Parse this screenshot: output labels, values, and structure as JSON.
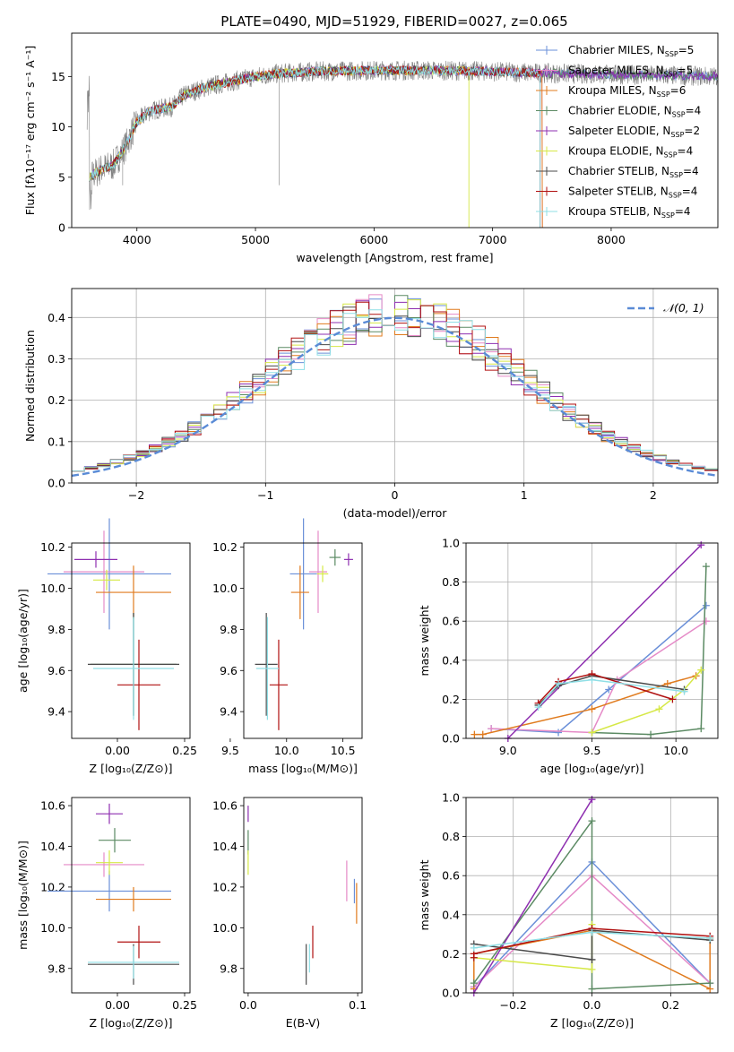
{
  "page_title": "PLATE=0490, MJD=51929, FIBERID=0027, z=0.065",
  "colors": {
    "Chabrier MILES": "#6a8fd8",
    "Salpeter MILES": "#e58ac7",
    "Kroupa MILES": "#e07b1e",
    "Chabrier ELODIE": "#5b8a63",
    "Salpeter ELODIE": "#8e2fb0",
    "Kroupa ELODIE": "#d6e847",
    "Chabrier STELIB": "#4a4a4a",
    "Salpeter STELIB": "#b01010",
    "Kroupa STELIB": "#8fdfe6",
    "data": "#808080"
  },
  "chart_data": [
    {
      "panel": "spectrum",
      "type": "line",
      "title": "PLATE=0490, MJD=51929, FIBERID=0027, z=0.065",
      "xlabel": "wavelength [Angstrom, rest frame]",
      "ylabel": "Flux [fλ10⁻¹⁷ erg cm⁻² s⁻¹ A⁻¹]",
      "xlim": [
        3450,
        8900
      ],
      "ylim": [
        0,
        19.3
      ],
      "xticks": [
        "4000",
        "5000",
        "6000",
        "7000",
        "8000"
      ],
      "yticks": [
        "0",
        "5",
        "10",
        "15"
      ],
      "legend_position": "upper right",
      "legend": [
        "Chabrier MILES, N$_{SSP}$=5",
        "Salpeter MILES, N$_{SSP}$=5",
        "Kroupa MILES, N$_{SSP}$=6",
        "Chabrier ELODIE, N$_{SSP}$=4",
        "Salpeter ELODIE, N$_{SSP}$=2",
        "Kroupa ELODIE, N$_{SSP}$=4",
        "Chabrier STELIB, N$_{SSP}$=4",
        "Salpeter STELIB, N$_{SSP}$=4",
        "Kroupa STELIB, N$_{SSP}$=4"
      ],
      "continuum": {
        "x": [
          3600,
          3700,
          3800,
          3900,
          4000,
          4100,
          4200,
          4300,
          4400,
          4600,
          4800,
          5000,
          5200,
          5500,
          6000,
          6500,
          7000,
          7500,
          8000,
          8500,
          8900
        ],
        "y": [
          5.0,
          5.8,
          6.2,
          8.0,
          10.5,
          11.5,
          11.8,
          12.0,
          13.2,
          14.0,
          14.5,
          15.0,
          15.3,
          15.5,
          15.6,
          15.6,
          15.5,
          15.3,
          15.2,
          15.1,
          15.0
        ]
      },
      "model_end": [
        8900,
        7420,
        7420,
        8900,
        8900,
        6800,
        7400,
        7400,
        7400
      ]
    },
    {
      "panel": "residual-histogram",
      "type": "bar",
      "xlabel": "(data-model)/error",
      "ylabel": "Normed distribution",
      "xlim": [
        -2.5,
        2.5
      ],
      "ylim": [
        0,
        0.47
      ],
      "xticks": [
        "−2",
        "−1",
        "0",
        "1",
        "2"
      ],
      "yticks": [
        "0.0",
        "0.1",
        "0.2",
        "0.3",
        "0.4"
      ],
      "grid": true,
      "legend": [
        "𝒩(0, 1)"
      ],
      "legend_position": "upper right",
      "gaussian": {
        "mu": 0,
        "sigma": 1,
        "color": "#5a8bd6"
      },
      "bin_width": 0.1
    },
    {
      "panel": "age-vs-Z",
      "type": "scatter",
      "xlabel": "Z [log₁₀(Z/Z⊙)]",
      "ylabel": "age  [log₁₀(age/yr)]",
      "xlim": [
        -0.17,
        0.27
      ],
      "ylim": [
        9.27,
        10.22
      ],
      "xticks": [
        "0.00",
        "0.25"
      ],
      "yticks": [
        "9.4",
        "9.6",
        "9.8",
        "10.0",
        "10.2"
      ],
      "points": [
        {
          "model": "Chabrier MILES",
          "x": -0.03,
          "xerr": 0.23,
          "y": 10.07,
          "yerr": 0.27
        },
        {
          "model": "Salpeter MILES",
          "x": -0.05,
          "xerr": 0.15,
          "y": 10.08,
          "yerr": 0.2
        },
        {
          "model": "Kroupa MILES",
          "x": 0.06,
          "xerr": 0.14,
          "y": 9.98,
          "yerr": 0.13
        },
        {
          "model": "Chabrier ELODIE",
          "x": 0.06,
          "xerr": 0.16,
          "y": 9.63,
          "yerr": 0.25
        },
        {
          "model": "Salpeter ELODIE",
          "x": -0.08,
          "xerr": 0.08,
          "y": 10.14,
          "yerr": 0.04
        },
        {
          "model": "Kroupa ELODIE",
          "x": -0.04,
          "xerr": 0.05,
          "y": 10.04,
          "yerr": 0.05
        },
        {
          "model": "Chabrier STELIB",
          "x": 0.06,
          "xerr": 0.17,
          "y": 9.63,
          "yerr": 0.25
        },
        {
          "model": "Salpeter STELIB",
          "x": 0.08,
          "xerr": 0.08,
          "y": 9.53,
          "yerr": 0.22
        },
        {
          "model": "Kroupa STELIB",
          "x": 0.06,
          "xerr": 0.15,
          "y": 9.61,
          "yerr": 0.25
        }
      ]
    },
    {
      "panel": "age-vs-mass",
      "type": "scatter",
      "xlabel": "mass [log₁₀(M/M⊙)]",
      "xlim": [
        9.62,
        10.67
      ],
      "ylim": [
        9.27,
        10.22
      ],
      "xticks": [
        "9.5",
        "10.0",
        "10.5"
      ],
      "yticks": [
        "9.4",
        "9.6",
        "9.8",
        "10.0",
        "10.2"
      ],
      "points": [
        {
          "model": "Chabrier MILES",
          "x": 10.15,
          "xerr": 0.12,
          "y": 10.07,
          "yerr": 0.27
        },
        {
          "model": "Salpeter MILES",
          "x": 10.28,
          "xerr": 0.08,
          "y": 10.08,
          "yerr": 0.2
        },
        {
          "model": "Kroupa MILES",
          "x": 10.12,
          "xerr": 0.08,
          "y": 9.98,
          "yerr": 0.13
        },
        {
          "model": "Chabrier ELODIE",
          "x": 10.43,
          "xerr": 0.05,
          "y": 10.15,
          "yerr": 0.04
        },
        {
          "model": "Salpeter ELODIE",
          "x": 10.55,
          "xerr": 0.04,
          "y": 10.14,
          "yerr": 0.03
        },
        {
          "model": "Kroupa ELODIE",
          "x": 10.32,
          "xerr": 0.05,
          "y": 10.07,
          "yerr": 0.04
        },
        {
          "model": "Chabrier STELIB",
          "x": 9.82,
          "xerr": 0.1,
          "y": 9.63,
          "yerr": 0.25
        },
        {
          "model": "Salpeter STELIB",
          "x": 9.93,
          "xerr": 0.08,
          "y": 9.53,
          "yerr": 0.22
        },
        {
          "model": "Kroupa STELIB",
          "x": 9.83,
          "xerr": 0.1,
          "y": 9.61,
          "yerr": 0.25
        }
      ]
    },
    {
      "panel": "mass-weight-vs-age",
      "type": "line",
      "xlabel": "age  [log₁₀(age/yr)]",
      "ylabel": "mass weight",
      "xlim": [
        8.75,
        10.25
      ],
      "ylim": [
        0,
        1.0
      ],
      "xticks": [
        "9.0",
        "9.5",
        "10.0"
      ],
      "yticks": [
        "0.0",
        "0.2",
        "0.4",
        "0.6",
        "0.8",
        "1.0"
      ],
      "grid": true,
      "series": [
        {
          "model": "Chabrier MILES",
          "x": [
            8.9,
            9.3,
            9.6,
            10.18
          ],
          "y": [
            0.05,
            0.03,
            0.25,
            0.68
          ]
        },
        {
          "model": "Salpeter MILES",
          "x": [
            8.9,
            9.5,
            9.65,
            10.18
          ],
          "y": [
            0.05,
            0.03,
            0.3,
            0.6
          ]
        },
        {
          "model": "Kroupa MILES",
          "x": [
            8.8,
            8.85,
            9.5,
            9.95,
            10.12
          ],
          "y": [
            0.02,
            0.02,
            0.15,
            0.28,
            0.32
          ]
        },
        {
          "model": "Chabrier ELODIE",
          "x": [
            9.5,
            9.85,
            10.15,
            10.18
          ],
          "y": [
            0.03,
            0.02,
            0.05,
            0.88
          ]
        },
        {
          "model": "Salpeter ELODIE",
          "x": [
            9.0,
            10.15
          ],
          "y": [
            0.0,
            0.99
          ]
        },
        {
          "model": "Kroupa ELODIE",
          "x": [
            9.5,
            9.9,
            10.05,
            10.15
          ],
          "y": [
            0.03,
            0.15,
            0.25,
            0.35
          ]
        },
        {
          "model": "Chabrier STELIB",
          "x": [
            9.18,
            9.3,
            9.5,
            10.05
          ],
          "y": [
            0.17,
            0.27,
            0.32,
            0.25
          ]
        },
        {
          "model": "Salpeter STELIB",
          "x": [
            9.18,
            9.3,
            9.5,
            9.98
          ],
          "y": [
            0.18,
            0.29,
            0.33,
            0.2
          ]
        },
        {
          "model": "Kroupa STELIB",
          "x": [
            9.18,
            9.3,
            9.5,
            10.05
          ],
          "y": [
            0.16,
            0.28,
            0.3,
            0.24
          ]
        }
      ]
    },
    {
      "panel": "mass-vs-Z",
      "type": "scatter",
      "xlabel": "Z [log₁₀(Z/Z⊙)]",
      "ylabel": "mass [log₁₀(M/M⊙)]",
      "xlim": [
        -0.17,
        0.27
      ],
      "ylim": [
        9.68,
        10.64
      ],
      "xticks": [
        "0.00",
        "0.25"
      ],
      "yticks": [
        "9.8",
        "10.0",
        "10.2",
        "10.4",
        "10.6"
      ],
      "points": [
        {
          "model": "Chabrier MILES",
          "x": -0.03,
          "xerr": 0.23,
          "y": 10.18,
          "yerr": 0.1
        },
        {
          "model": "Salpeter MILES",
          "x": -0.05,
          "xerr": 0.15,
          "y": 10.31,
          "yerr": 0.06
        },
        {
          "model": "Kroupa MILES",
          "x": 0.06,
          "xerr": 0.14,
          "y": 10.14,
          "yerr": 0.06
        },
        {
          "model": "Chabrier ELODIE",
          "x": -0.01,
          "xerr": 0.06,
          "y": 10.43,
          "yerr": 0.06
        },
        {
          "model": "Salpeter ELODIE",
          "x": -0.03,
          "xerr": 0.05,
          "y": 10.56,
          "yerr": 0.05
        },
        {
          "model": "Kroupa ELODIE",
          "x": -0.03,
          "xerr": 0.05,
          "y": 10.32,
          "yerr": 0.06
        },
        {
          "model": "Chabrier STELIB",
          "x": 0.06,
          "xerr": 0.17,
          "y": 9.82,
          "yerr": 0.1
        },
        {
          "model": "Salpeter STELIB",
          "x": 0.08,
          "xerr": 0.08,
          "y": 9.93,
          "yerr": 0.08
        },
        {
          "model": "Kroupa STELIB",
          "x": 0.06,
          "xerr": 0.17,
          "y": 9.83,
          "yerr": 0.08
        }
      ]
    },
    {
      "panel": "mass-vs-EBV",
      "type": "scatter",
      "xlabel": "E(B-V)",
      "xlim": [
        -0.004,
        0.104
      ],
      "ylim": [
        9.68,
        10.64
      ],
      "xticks": [
        "0.0",
        "0.1"
      ],
      "yticks": [
        "9.8",
        "10.0",
        "10.2",
        "10.4",
        "10.6"
      ],
      "points": [
        {
          "model": "Chabrier MILES",
          "x": 0.097,
          "xerr": 0,
          "y": 10.18,
          "yerr": 0.06
        },
        {
          "model": "Salpeter MILES",
          "x": 0.09,
          "xerr": 0,
          "y": 10.23,
          "yerr": 0.1
        },
        {
          "model": "Kroupa MILES",
          "x": 0.099,
          "xerr": 0,
          "y": 10.12,
          "yerr": 0.1
        },
        {
          "model": "Chabrier ELODIE",
          "x": 0.0,
          "xerr": 0,
          "y": 10.42,
          "yerr": 0.06
        },
        {
          "model": "Salpeter ELODIE",
          "x": 0.0,
          "xerr": 0,
          "y": 10.56,
          "yerr": 0.04
        },
        {
          "model": "Kroupa ELODIE",
          "x": 0.0,
          "xerr": 0,
          "y": 10.32,
          "yerr": 0.06
        },
        {
          "model": "Chabrier STELIB",
          "x": 0.053,
          "xerr": 0,
          "y": 9.82,
          "yerr": 0.1
        },
        {
          "model": "Salpeter STELIB",
          "x": 0.059,
          "xerr": 0,
          "y": 9.93,
          "yerr": 0.08
        },
        {
          "model": "Kroupa STELIB",
          "x": 0.056,
          "xerr": 0,
          "y": 9.85,
          "yerr": 0.07
        }
      ]
    },
    {
      "panel": "mass-weight-vs-Z",
      "type": "line",
      "xlabel": "Z [log₁₀(Z/Z⊙)]",
      "ylabel": "mass weight",
      "xlim": [
        -0.32,
        0.32
      ],
      "ylim": [
        0,
        1.0
      ],
      "xticks": [
        "−0.2",
        "0.0",
        "0.2"
      ],
      "yticks": [
        "0.0",
        "0.2",
        "0.4",
        "0.6",
        "0.8",
        "1.0"
      ],
      "grid": true,
      "series": [
        {
          "model": "Chabrier MILES",
          "x": [
            -0.3,
            0.0,
            0.3
          ],
          "y": [
            0.03,
            0.67,
            0.05
          ]
        },
        {
          "model": "Salpeter MILES",
          "x": [
            -0.3,
            0.0,
            0.3
          ],
          "y": [
            0.03,
            0.6,
            0.05
          ]
        },
        {
          "model": "Kroupa MILES",
          "x": [
            -0.3,
            -0.3,
            0.0,
            0.3,
            0.3
          ],
          "y": [
            0.02,
            0.2,
            0.32,
            0.02,
            0.28
          ]
        },
        {
          "model": "Chabrier ELODIE",
          "x": [
            -0.3,
            0.0,
            0.0,
            0.3
          ],
          "y": [
            0.05,
            0.88,
            0.02,
            0.05
          ]
        },
        {
          "model": "Salpeter ELODIE",
          "x": [
            -0.3,
            0.0
          ],
          "y": [
            0.0,
            0.99
          ]
        },
        {
          "model": "Kroupa ELODIE",
          "x": [
            -0.3,
            0.0,
            0.0
          ],
          "y": [
            0.18,
            0.12,
            0.35
          ]
        },
        {
          "model": "Chabrier STELIB",
          "x": [
            -0.3,
            0.0,
            0.0,
            0.3
          ],
          "y": [
            0.25,
            0.17,
            0.32,
            0.27
          ]
        },
        {
          "model": "Salpeter STELIB",
          "x": [
            -0.3,
            -0.3,
            0.0,
            0.3
          ],
          "y": [
            0.18,
            0.2,
            0.33,
            0.29
          ]
        },
        {
          "model": "Kroupa STELIB",
          "x": [
            -0.3,
            0.0,
            0.3
          ],
          "y": [
            0.23,
            0.31,
            0.28
          ]
        }
      ]
    }
  ]
}
